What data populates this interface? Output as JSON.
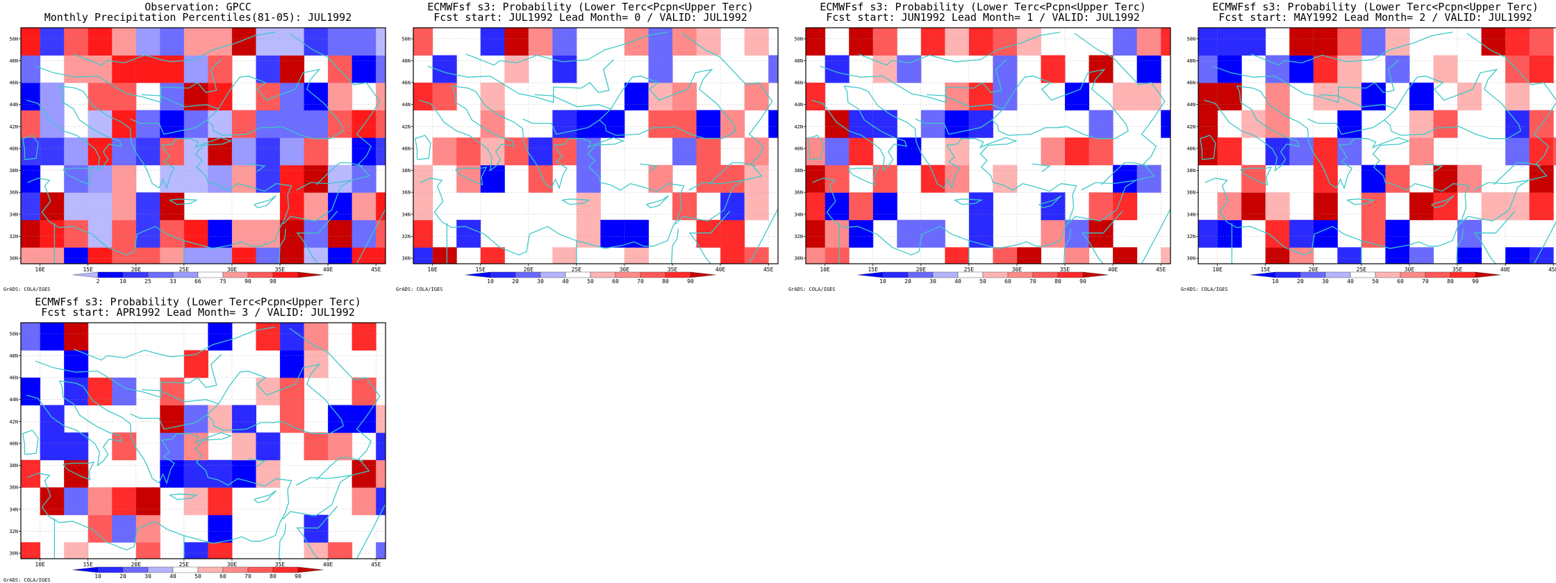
{
  "credit": "GrADS: COLA/IGES",
  "colors": {
    "coast": "#3cc8c8",
    "frame": "#000000",
    "grid": "#9a9a9a"
  },
  "axes": {
    "x_ticks": [
      "10E",
      "15E",
      "20E",
      "25E",
      "30E",
      "35E",
      "40E",
      "45E"
    ],
    "y_ticks": [
      "30N",
      "32N",
      "34N",
      "36N",
      "38N",
      "40N",
      "42N",
      "44N",
      "46N",
      "48N",
      "50N"
    ],
    "lon_range": [
      8,
      46
    ],
    "lat_range": [
      29.5,
      51
    ]
  },
  "legends": {
    "observation": {
      "labels": [
        "2",
        "10",
        "25",
        "33",
        "66",
        "75",
        "90",
        "98"
      ],
      "colors": [
        "#b9b9ff",
        "#0000ff",
        "#3a3aff",
        "#6d6dff",
        "#9a9aff",
        "#ffffff",
        "#ff9a9a",
        "#ff5a5a",
        "#ff1a1a",
        "#c80000"
      ]
    },
    "forecast": {
      "labels": [
        "10",
        "20",
        "30",
        "40",
        "50",
        "60",
        "70",
        "80",
        "90"
      ],
      "colors": [
        "#0000ff",
        "#2a2aff",
        "#6a6aff",
        "#b4b4ff",
        "#ffffff",
        "#ffb4b4",
        "#ff8a8a",
        "#ff5a5a",
        "#ff2a2a",
        "#c80000"
      ]
    }
  },
  "panels": [
    {
      "title1": "Observation: GPCC",
      "title2": "Monthly Precipitation Percentiles(81-05): JUL1992",
      "legend": "observation",
      "seed": 11,
      "palette": [
        "#b9b9ff",
        "#0000ff",
        "#3a3aff",
        "#6d6dff",
        "#9a9aff",
        "#ffffff",
        "#ff9a9a",
        "#ff5a5a",
        "#ff1a1a",
        "#c80000"
      ]
    },
    {
      "title1": "ECMWFsf s3: Probability (Lower Terc<Pcpn<Upper Terc)",
      "title2": "Fcst start: JUL1992  Lead Month= 0 / VALID: JUL1992",
      "legend": "forecast",
      "seed": 23,
      "palette": [
        "#0000ff",
        "#2a2aff",
        "#6a6aff",
        "#ffffff",
        "#ffffff",
        "#ffb4b4",
        "#ff8a8a",
        "#ff5a5a",
        "#ff2a2a",
        "#c80000"
      ]
    },
    {
      "title1": "ECMWFsf s3: Probability (Lower Terc<Pcpn<Upper Terc)",
      "title2": "Fcst start: JUN1992  Lead Month= 1 / VALID: JUL1992",
      "legend": "forecast",
      "seed": 37,
      "palette": [
        "#0000ff",
        "#2a2aff",
        "#6a6aff",
        "#ffffff",
        "#ffffff",
        "#ffb4b4",
        "#ff8a8a",
        "#ff5a5a",
        "#ff2a2a",
        "#c80000"
      ]
    },
    {
      "title1": "ECMWFsf s3: Probability (Lower Terc<Pcpn<Upper Terc)",
      "title2": "Fcst start: MAY1992  Lead Month= 2 / VALID: JUL1992",
      "legend": "forecast",
      "seed": 51,
      "palette": [
        "#0000ff",
        "#2a2aff",
        "#6a6aff",
        "#ffffff",
        "#ffffff",
        "#ffb4b4",
        "#ff8a8a",
        "#ff5a5a",
        "#ff2a2a",
        "#c80000"
      ]
    },
    {
      "title1": "ECMWFsf s3: Probability (Lower Terc<Pcpn<Upper Terc)",
      "title2": "Fcst start: APR1992  Lead Month= 3 / VALID: JUL1992",
      "legend": "forecast",
      "seed": 67,
      "palette": [
        "#0000ff",
        "#2a2aff",
        "#6a6aff",
        "#ffffff",
        "#ffffff",
        "#ffb4b4",
        "#ff8a8a",
        "#ff5a5a",
        "#ff2a2a",
        "#c80000"
      ]
    }
  ]
}
